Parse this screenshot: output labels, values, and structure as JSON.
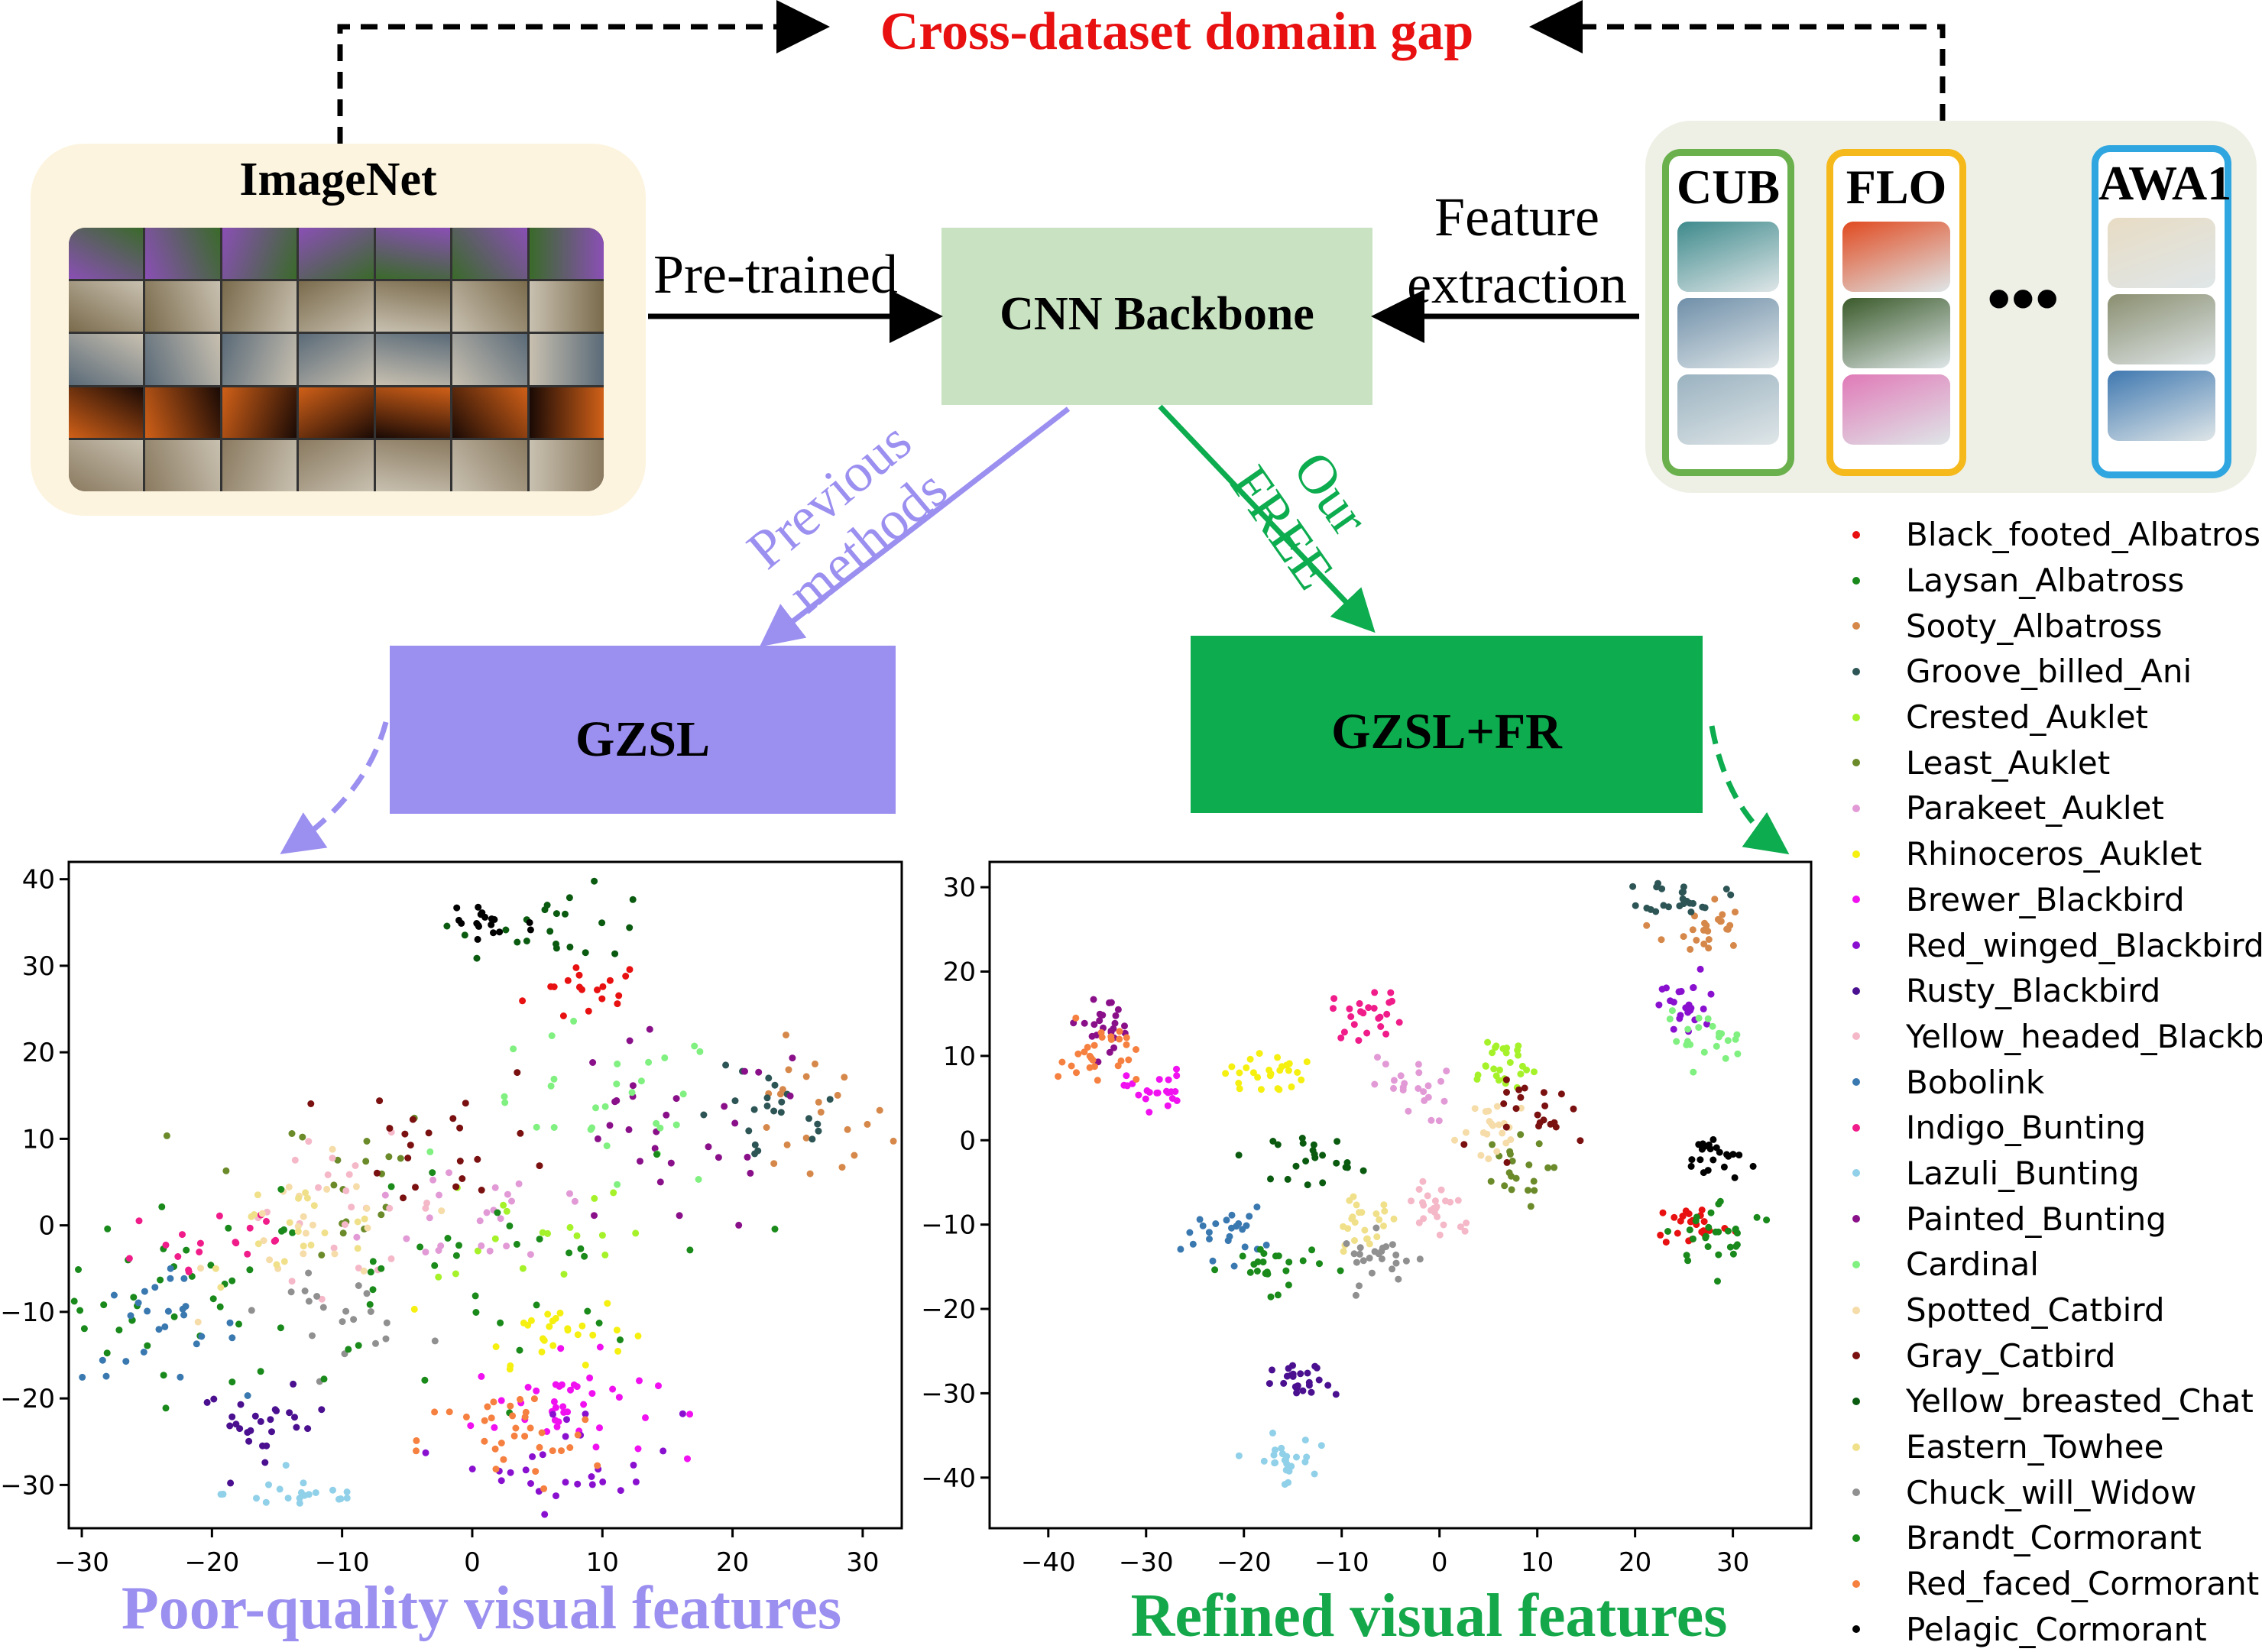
{
  "title": "Cross-dataset domain gap",
  "imagenet": {
    "label": "ImageNet"
  },
  "backbone": {
    "label": "CNN Backbone"
  },
  "edges": {
    "pretrained": "Pre-trained",
    "feature_extraction": [
      "Feature",
      "extraction"
    ],
    "previous": [
      "Previous",
      "methods"
    ],
    "ours": [
      "Our",
      "FREE"
    ]
  },
  "datasets": [
    {
      "label": "CUB",
      "color": "#6ab04c",
      "thumbs": [
        "#3e8a8c",
        "#6f8fa9",
        "#9ab2c0"
      ]
    },
    {
      "label": "FLO",
      "color": "#f5b91b",
      "thumbs": [
        "#e04a20",
        "#3a5a2a",
        "#e07ab8"
      ]
    },
    {
      "label": "AWA1",
      "color": "#2fa6e0",
      "thumbs": [
        "#e8dcc4",
        "#8a8f70",
        "#3f78b0"
      ]
    }
  ],
  "dataset_ellipsis": "•••",
  "gzsl": {
    "label": "GZSL",
    "color": "#9b8ff0"
  },
  "gzslfr": {
    "label": "GZSL+FR",
    "color": "#0dac4f"
  },
  "captions": {
    "left": "Poor-quality visual features",
    "right": "Refined visual features"
  },
  "imagenet_rows": [
    "#8a4fb5",
    "#7a6b4c",
    "#5a6a78",
    "#d06018",
    "#8a7a60"
  ],
  "chart_data": [
    {
      "type": "scatter",
      "xlim": [
        -31,
        33
      ],
      "ylim": [
        -35,
        42
      ],
      "xticks": [
        -30,
        -20,
        -10,
        0,
        10,
        20,
        30
      ],
      "yticks": [
        -30,
        -20,
        -10,
        0,
        10,
        20,
        30,
        40
      ],
      "xtick_labels": [
        "−30",
        "−20",
        "−10",
        "0",
        "10",
        "20",
        "30"
      ],
      "ytick_labels": [
        "−30",
        "−20",
        "−10",
        "0",
        "10",
        "20",
        "30",
        "40"
      ],
      "series": [
        {
          "name": "Black_footed_Albatross",
          "color": "#e81010",
          "center": [
            9,
            27
          ],
          "spread": [
            2.5,
            2
          ],
          "n": 18
        },
        {
          "name": "Laysan_Albatross",
          "color": "#18891a",
          "center": [
            -22,
            -8
          ],
          "spread": [
            5,
            5
          ],
          "n": 40
        },
        {
          "name": "Sooty_Albatross",
          "color": "#d6884a",
          "center": [
            26,
            12
          ],
          "spread": [
            3,
            4
          ],
          "n": 22
        },
        {
          "name": "Groove_billed_Ani",
          "color": "#2e5556",
          "center": [
            23,
            12
          ],
          "spread": [
            3,
            3
          ],
          "n": 22
        },
        {
          "name": "Crested_Auklet",
          "color": "#a6f22a",
          "center": [
            5,
            0
          ],
          "spread": [
            4,
            4
          ],
          "n": 18
        },
        {
          "name": "Least_Auklet",
          "color": "#6b8a2a",
          "center": [
            -12,
            5
          ],
          "spread": [
            5,
            5
          ],
          "n": 20
        },
        {
          "name": "Parakeet_Auklet",
          "color": "#e29ad6",
          "center": [
            2,
            2
          ],
          "spread": [
            5,
            4
          ],
          "n": 24
        },
        {
          "name": "Rhinoceros_Auklet",
          "color": "#f5f010",
          "center": [
            6,
            -12
          ],
          "spread": [
            3,
            2
          ],
          "n": 26
        },
        {
          "name": "Brewer_Blackbird",
          "color": "#f010f0",
          "center": [
            7,
            -21
          ],
          "spread": [
            3.5,
            3
          ],
          "n": 40
        },
        {
          "name": "Red_winged_Blackbird",
          "color": "#8a10d0",
          "center": [
            8,
            -27
          ],
          "spread": [
            4,
            3
          ],
          "n": 28
        },
        {
          "name": "Rusty_Blackbird",
          "color": "#4a1090",
          "center": [
            -16,
            -23
          ],
          "spread": [
            2.5,
            2
          ],
          "n": 26
        },
        {
          "name": "Yellow_headed_Blackbird",
          "color": "#f5b8c8",
          "center": [
            -10,
            2
          ],
          "spread": [
            4,
            4
          ],
          "n": 24
        },
        {
          "name": "Bobolink",
          "color": "#3a78b0",
          "center": [
            -24,
            -12
          ],
          "spread": [
            3,
            3
          ],
          "n": 26
        },
        {
          "name": "Indigo_Bunting",
          "color": "#f01c8a",
          "center": [
            -20,
            -2
          ],
          "spread": [
            4,
            3
          ],
          "n": 18
        },
        {
          "name": "Lazuli_Bunting",
          "color": "#90d0e8",
          "center": [
            -13,
            -31
          ],
          "spread": [
            3,
            1
          ],
          "n": 20
        },
        {
          "name": "Painted_Bunting",
          "color": "#8a108a",
          "center": [
            15,
            10
          ],
          "spread": [
            6,
            6
          ],
          "n": 30
        },
        {
          "name": "Cardinal",
          "color": "#80f080",
          "center": [
            10,
            13
          ],
          "spread": [
            5,
            5
          ],
          "n": 30
        },
        {
          "name": "Spotted_Catbird",
          "color": "#f5dca8",
          "center": [
            -12,
            -1
          ],
          "spread": [
            4,
            4
          ],
          "n": 22
        },
        {
          "name": "Gray_Catbird",
          "color": "#7a1010",
          "center": [
            -1,
            10
          ],
          "spread": [
            4,
            4
          ],
          "n": 22
        },
        {
          "name": "Yellow_breasted_Chat",
          "color": "#0a5a10",
          "center": [
            7,
            35
          ],
          "spread": [
            4,
            2
          ],
          "n": 22
        },
        {
          "name": "Eastern_Towhee",
          "color": "#f0e08a",
          "center": [
            -14,
            -1
          ],
          "spread": [
            4,
            3
          ],
          "n": 20
        },
        {
          "name": "Chuck_will_Widow",
          "color": "#909090",
          "center": [
            -10,
            -10
          ],
          "spread": [
            3,
            2
          ],
          "n": 20
        },
        {
          "name": "Brandt_Cormorant",
          "color": "#1a8a1a",
          "center": [
            -2,
            -6
          ],
          "spread": [
            8,
            7
          ],
          "n": 36
        },
        {
          "name": "Red_faced_Cormorant",
          "color": "#f58040",
          "center": [
            3,
            -25
          ],
          "spread": [
            3.5,
            3
          ],
          "n": 34
        },
        {
          "name": "Pelagic_Cormorant",
          "color": "#000000",
          "center": [
            1,
            35
          ],
          "spread": [
            2,
            2
          ],
          "n": 18
        }
      ]
    },
    {
      "type": "scatter",
      "xlim": [
        -46,
        38
      ],
      "ylim": [
        -46,
        33
      ],
      "xticks": [
        -40,
        -30,
        -20,
        -10,
        0,
        10,
        20,
        30
      ],
      "yticks": [
        -40,
        -30,
        -20,
        -10,
        0,
        10,
        20,
        30
      ],
      "xtick_labels": [
        "−40",
        "−30",
        "−20",
        "−10",
        "0",
        "10",
        "20",
        "30"
      ],
      "ytick_labels": [
        "−40",
        "−30",
        "−20",
        "−10",
        "0",
        "10",
        "20",
        "30"
      ],
      "series": [
        {
          "name": "Black_footed_Albatross",
          "color": "#e81010",
          "center": [
            26,
            -10
          ],
          "spread": [
            2,
            1.3
          ],
          "n": 24
        },
        {
          "name": "Laysan_Albatross",
          "color": "#18891a",
          "center": [
            29,
            -11
          ],
          "spread": [
            3,
            2
          ],
          "n": 28
        },
        {
          "name": "Sooty_Albatross",
          "color": "#d6884a",
          "center": [
            27,
            25
          ],
          "spread": [
            2,
            2
          ],
          "n": 24
        },
        {
          "name": "Groove_billed_Ani",
          "color": "#2e5556",
          "center": [
            25,
            29
          ],
          "spread": [
            2,
            1
          ],
          "n": 24
        },
        {
          "name": "Crested_Auklet",
          "color": "#a6f22a",
          "center": [
            6,
            9
          ],
          "spread": [
            2,
            2
          ],
          "n": 26
        },
        {
          "name": "Least_Auklet",
          "color": "#6b8a2a",
          "center": [
            7,
            -4
          ],
          "spread": [
            2,
            2
          ],
          "n": 20
        },
        {
          "name": "Parakeet_Auklet",
          "color": "#e29ad6",
          "center": [
            -3,
            6
          ],
          "spread": [
            2,
            2
          ],
          "n": 22
        },
        {
          "name": "Rhinoceros_Auklet",
          "color": "#f5f010",
          "center": [
            -18,
            8
          ],
          "spread": [
            2,
            1.3
          ],
          "n": 26
        },
        {
          "name": "Brewer_Blackbird",
          "color": "#f010f0",
          "center": [
            -29,
            6
          ],
          "spread": [
            1.5,
            1.2
          ],
          "n": 22
        },
        {
          "name": "Red_winged_Blackbird",
          "color": "#8a10d0",
          "center": [
            25,
            16
          ],
          "spread": [
            2,
            2
          ],
          "n": 24
        },
        {
          "name": "Rusty_Blackbird",
          "color": "#4a1090",
          "center": [
            -14,
            -29
          ],
          "spread": [
            1.5,
            1.2
          ],
          "n": 24
        },
        {
          "name": "Yellow_headed_Blackbird",
          "color": "#f5b8c8",
          "center": [
            0,
            -8
          ],
          "spread": [
            2,
            2
          ],
          "n": 24
        },
        {
          "name": "Bobolink",
          "color": "#3a78b0",
          "center": [
            -22,
            -11
          ],
          "spread": [
            2,
            1.5
          ],
          "n": 24
        },
        {
          "name": "Indigo_Bunting",
          "color": "#f01c8a",
          "center": [
            -7,
            15
          ],
          "spread": [
            2,
            1.5
          ],
          "n": 24
        },
        {
          "name": "Lazuli_Bunting",
          "color": "#90d0e8",
          "center": [
            -16,
            -38
          ],
          "spread": [
            1.5,
            1.5
          ],
          "n": 24
        },
        {
          "name": "Painted_Bunting",
          "color": "#8a108a",
          "center": [
            -34,
            14
          ],
          "spread": [
            2,
            1.5
          ],
          "n": 24
        },
        {
          "name": "Cardinal",
          "color": "#80f080",
          "center": [
            27,
            12
          ],
          "spread": [
            2,
            1.5
          ],
          "n": 22
        },
        {
          "name": "Spotted_Catbird",
          "color": "#f5dca8",
          "center": [
            6,
            1
          ],
          "spread": [
            2,
            2
          ],
          "n": 22
        },
        {
          "name": "Gray_Catbird",
          "color": "#7a1010",
          "center": [
            11,
            3
          ],
          "spread": [
            3,
            2
          ],
          "n": 22
        },
        {
          "name": "Yellow_breasted_Chat",
          "color": "#0a5a10",
          "center": [
            -13,
            -2
          ],
          "spread": [
            2,
            1.5
          ],
          "n": 22
        },
        {
          "name": "Eastern_Towhee",
          "color": "#f0e08a",
          "center": [
            -8,
            -10
          ],
          "spread": [
            2,
            1.5
          ],
          "n": 24
        },
        {
          "name": "Chuck_will_Widow",
          "color": "#909090",
          "center": [
            -6,
            -14
          ],
          "spread": [
            2,
            1.5
          ],
          "n": 24
        },
        {
          "name": "Brandt_Cormorant",
          "color": "#1a8a1a",
          "center": [
            -17,
            -15
          ],
          "spread": [
            2.5,
            1.5
          ],
          "n": 24
        },
        {
          "name": "Red_faced_Cormorant",
          "color": "#f58040",
          "center": [
            -35,
            10
          ],
          "spread": [
            2,
            2
          ],
          "n": 28
        },
        {
          "name": "Pelagic_Cormorant",
          "color": "#000000",
          "center": [
            28,
            -2
          ],
          "spread": [
            1.5,
            1.5
          ],
          "n": 22
        }
      ]
    }
  ]
}
